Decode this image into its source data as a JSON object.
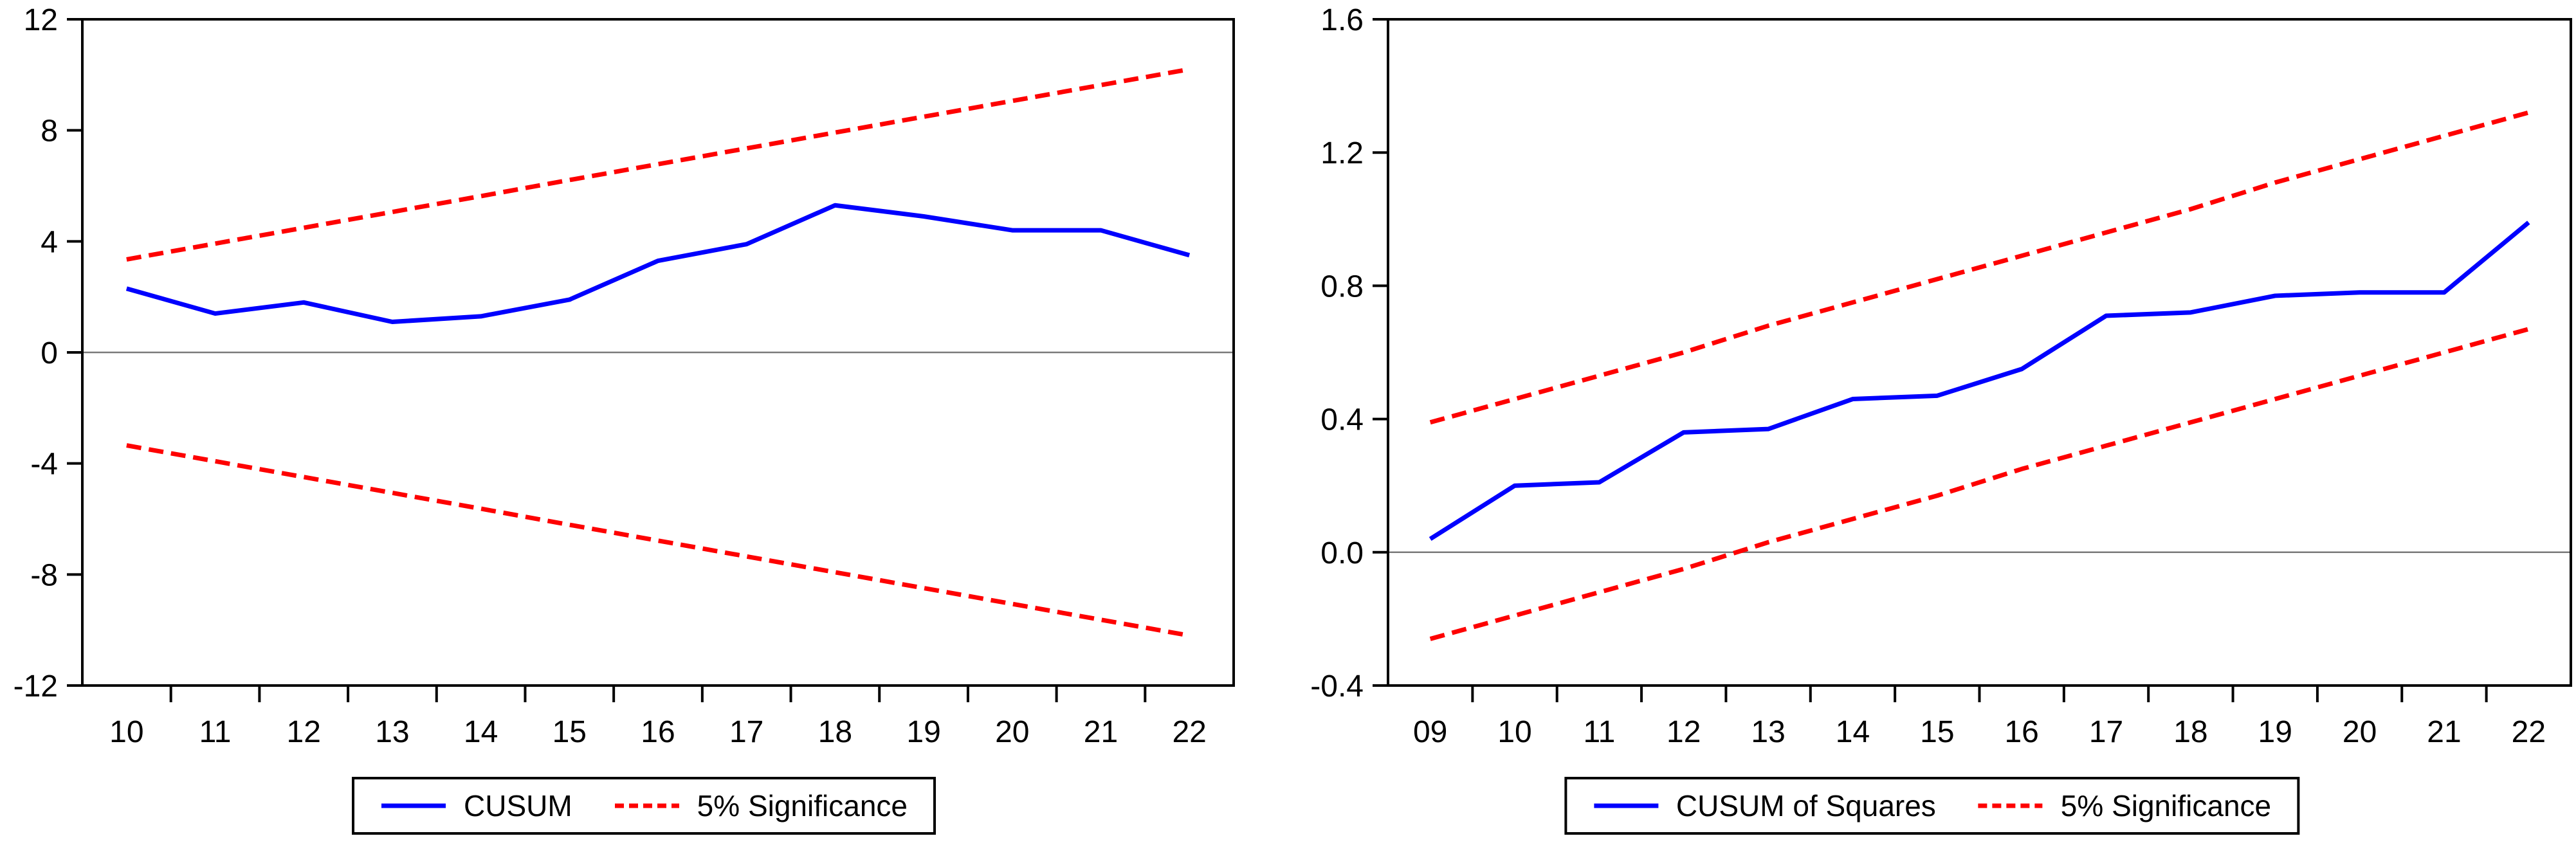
{
  "page": {
    "background_color": "#ffffff",
    "axis_color": "#000000",
    "zero_line_color": "#7a7a7a"
  },
  "chart_data": [
    {
      "type": "line",
      "name": "cusum-test",
      "title": "",
      "xlabel": "",
      "ylabel": "",
      "categories": [
        "10",
        "11",
        "12",
        "13",
        "14",
        "15",
        "16",
        "17",
        "18",
        "19",
        "20",
        "21",
        "22"
      ],
      "ylim": [
        -12,
        12
      ],
      "yticks": [
        "12",
        "8",
        "4",
        "0",
        "-4",
        "-8",
        "-12"
      ],
      "ytick_values": [
        12,
        8,
        4,
        0,
        -4,
        -8,
        -12
      ],
      "grid": false,
      "zero_line": true,
      "series": [
        {
          "name": "CUSUM",
          "color": "#0000fe",
          "dash": false,
          "values": [
            2.3,
            1.4,
            1.8,
            1.1,
            1.3,
            1.9,
            3.3,
            3.9,
            5.3,
            4.9,
            4.4,
            4.4,
            3.5
          ]
        },
        {
          "name": "5% Significance (upper bound)",
          "color": "#fe0000",
          "dash": true,
          "values": [
            3.35,
            3.92,
            4.49,
            5.06,
            5.63,
            6.21,
            6.78,
            7.35,
            7.92,
            8.49,
            9.06,
            9.63,
            10.2
          ]
        },
        {
          "name": "5% Significance (lower bound)",
          "color": "#fe0000",
          "dash": true,
          "values": [
            -3.35,
            -3.92,
            -4.49,
            -5.06,
            -5.63,
            -6.21,
            -6.78,
            -7.35,
            -7.92,
            -8.49,
            -9.06,
            -9.63,
            -10.2
          ]
        }
      ],
      "legend_position": "bottom",
      "legend": [
        {
          "label": "CUSUM",
          "color": "#0000fe",
          "dash": false
        },
        {
          "label": "5% Significance",
          "color": "#fe0000",
          "dash": true
        }
      ]
    },
    {
      "type": "line",
      "name": "cusum-of-squares-test",
      "title": "",
      "xlabel": "",
      "ylabel": "",
      "categories": [
        "09",
        "10",
        "11",
        "12",
        "13",
        "14",
        "15",
        "16",
        "17",
        "18",
        "19",
        "20",
        "21",
        "22"
      ],
      "ylim": [
        -0.4,
        1.6
      ],
      "yticks": [
        "1.6",
        "1.2",
        "0.8",
        "0.4",
        "0.0",
        "-0.4"
      ],
      "ytick_values": [
        1.6,
        1.2,
        0.8,
        0.4,
        0.0,
        -0.4
      ],
      "grid": false,
      "zero_line": true,
      "series": [
        {
          "name": "CUSUM of Squares",
          "color": "#0000fe",
          "dash": false,
          "values": [
            0.04,
            0.2,
            0.21,
            0.36,
            0.37,
            0.46,
            0.47,
            0.55,
            0.71,
            0.72,
            0.77,
            0.78,
            0.78,
            0.99
          ]
        },
        {
          "name": "5% Significance (upper bound)",
          "color": "#fe0000",
          "dash": true,
          "values": [
            0.39,
            0.46,
            0.53,
            0.6,
            0.68,
            0.75,
            0.82,
            0.89,
            0.96,
            1.03,
            1.11,
            1.18,
            1.25,
            1.32
          ]
        },
        {
          "name": "5% Significance (lower bound)",
          "color": "#fe0000",
          "dash": true,
          "values": [
            -0.26,
            -0.19,
            -0.12,
            -0.05,
            0.03,
            0.1,
            0.17,
            0.25,
            0.32,
            0.39,
            0.46,
            0.53,
            0.6,
            0.67
          ]
        }
      ],
      "legend_position": "bottom",
      "legend": [
        {
          "label": "CUSUM of Squares",
          "color": "#0000fe",
          "dash": false
        },
        {
          "label": "5% Significance",
          "color": "#fe0000",
          "dash": true
        }
      ]
    }
  ]
}
